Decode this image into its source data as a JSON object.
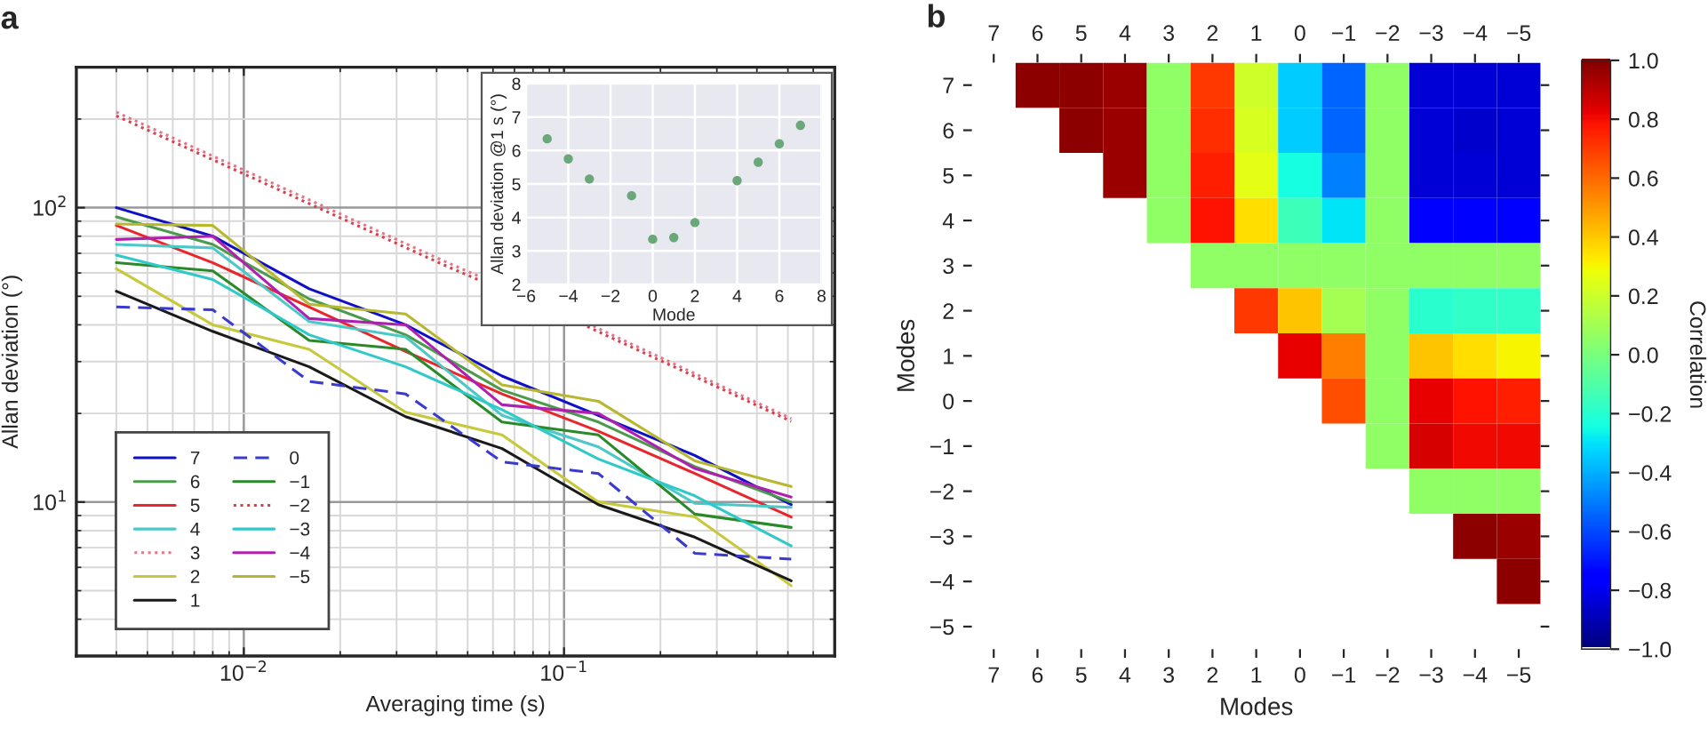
{
  "chart_data": [
    {
      "type": "line",
      "title": "a",
      "xlabel": "Averaging time (s)",
      "ylabel": "Allan deviation (°)",
      "log": "xy",
      "grid": true,
      "legend": "bottom left",
      "xlim": [
        0.003,
        0.7
      ],
      "ylim": [
        3,
        300
      ],
      "xticks": [
        {
          "value": 0.01,
          "label": "10$^{−2}$"
        },
        {
          "value": 0.1,
          "label": "10$^{−1}$"
        }
      ],
      "yticks": [
        {
          "value": 10,
          "label": "10$^{1}$"
        },
        {
          "value": 100,
          "label": "10$^{2}$"
        }
      ],
      "x": [
        0.004,
        0.008,
        0.016,
        0.032,
        0.064,
        0.128,
        0.256,
        0.512
      ],
      "series": [
        {
          "name": "7",
          "color": "#1010c8",
          "line_style": "solid",
          "values": [
            100,
            80,
            53,
            40,
            26.8,
            19.7,
            14.4,
            9.8
          ]
        },
        {
          "name": "6",
          "color": "#4c9a4c",
          "line_style": "solid",
          "values": [
            93,
            75,
            49,
            37,
            24,
            18.7,
            13.2,
            10
          ]
        },
        {
          "name": "5",
          "color": "#e8262b",
          "line_style": "solid",
          "values": [
            87,
            65,
            46,
            32.5,
            23.3,
            17.4,
            12.5,
            8.9
          ]
        },
        {
          "name": "4",
          "color": "#4cc8c8",
          "line_style": "solid",
          "values": [
            75,
            73,
            41,
            36.4,
            19.7,
            15.4,
            9.9,
            9.6
          ]
        },
        {
          "name": "3",
          "color": "#e8748a",
          "line_style": "dotted",
          "x": [
            0.004,
            0.042,
            0.121,
            0.512
          ],
          "values": [
            211,
            66,
            40,
            19.2
          ]
        },
        {
          "name": "2",
          "color": "#c8c83c",
          "line_style": "solid",
          "values": [
            62,
            40,
            33,
            20.2,
            16.9,
            10,
            8.9,
            5.2
          ]
        },
        {
          "name": "1",
          "color": "#1a1a1a",
          "line_style": "solid",
          "values": [
            52,
            38,
            28.8,
            19.5,
            15.2,
            9.8,
            7.6,
            5.4
          ]
        },
        {
          "name": "0",
          "color": "#3a3ad0",
          "line_style": "dashed",
          "values": [
            46,
            45,
            25.7,
            23.3,
            13.7,
            12.5,
            6.7,
            6.4
          ]
        },
        {
          "name": "−1",
          "color": "#2a8a2a",
          "line_style": "solid",
          "values": [
            65,
            61,
            35.4,
            33,
            18.7,
            16.9,
            9.1,
            8.2
          ]
        },
        {
          "name": "−2",
          "color": "#d8404a",
          "line_style": "dotted",
          "x": [
            0.004,
            0.042,
            0.121,
            0.512
          ],
          "values": [
            205,
            64,
            39,
            18.8
          ]
        },
        {
          "name": "−3",
          "color": "#30c8c8",
          "line_style": "solid",
          "values": [
            69,
            57,
            37,
            28.8,
            20.6,
            14,
            10.5,
            7.1
          ]
        },
        {
          "name": "−4",
          "color": "#b020b0",
          "line_style": "solid",
          "values": [
            78,
            80,
            42,
            40,
            21.4,
            20,
            13,
            10.4
          ]
        },
        {
          "name": "−5",
          "color": "#b8b830",
          "line_style": "solid",
          "values": [
            88,
            87,
            47,
            43.5,
            25,
            22,
            13.8,
            11.3
          ]
        }
      ]
    },
    {
      "type": "scatter",
      "xlabel": "Mode",
      "ylabel": "Allan deviation @1 s (°)",
      "grid": true,
      "xlim": [
        -6,
        8
      ],
      "ylim": [
        2,
        8
      ],
      "xticks": [
        {
          "value": -6,
          "label": "−6"
        },
        {
          "value": -4,
          "label": "−4"
        },
        {
          "value": -2,
          "label": "−2"
        },
        0,
        2,
        4,
        6,
        8
      ],
      "yticks": [
        2,
        3,
        4,
        5,
        6,
        7,
        8
      ],
      "x": [
        -5,
        -4,
        -3,
        -1,
        0,
        1,
        2,
        4,
        5,
        6,
        7
      ],
      "series": [
        {
          "color": "#6aa87a",
          "values": [
            6.35,
            5.75,
            5.15,
            4.65,
            3.35,
            3.4,
            3.85,
            5.1,
            5.65,
            6.2,
            6.75
          ]
        }
      ]
    },
    {
      "type": "heatmap",
      "title": "b",
      "xlabel": "Modes",
      "ylabel": "Modes",
      "clabel": "Correlation",
      "categories": [
        "7",
        "6",
        "5",
        "4",
        "3",
        "2",
        "1",
        "0",
        "−1",
        "−2",
        "−3",
        "−4",
        "−5"
      ],
      "y_categories": [
        "7",
        "6",
        "5",
        "4",
        "3",
        "2",
        "1",
        "0",
        "−1",
        "−2",
        "−3",
        "−4",
        "−5"
      ],
      "clim": [
        -1,
        1
      ],
      "cticks": [
        {
          "value": -1,
          "label": "−1.0"
        },
        {
          "value": -0.8,
          "label": "−0.8"
        },
        {
          "value": -0.6,
          "label": "−0.6"
        },
        {
          "value": -0.4,
          "label": "−0.4"
        },
        {
          "value": -0.2,
          "label": "−0.2"
        },
        {
          "value": 0,
          "label": "0.0"
        },
        {
          "value": 0.2,
          "label": "0.2"
        },
        {
          "value": 0.4,
          "label": "0.4"
        },
        {
          "value": 0.6,
          "label": "0.6"
        },
        {
          "value": 0.8,
          "label": "0.8"
        },
        {
          "value": 1,
          "label": "1.0"
        }
      ],
      "cells": [
        [
          null,
          0.97,
          0.97,
          0.95,
          0.05,
          0.7,
          0.2,
          -0.35,
          -0.55,
          0.05,
          -0.85,
          -0.85,
          -0.85
        ],
        [
          null,
          null,
          0.97,
          0.95,
          0.05,
          0.72,
          0.22,
          -0.35,
          -0.55,
          0.05,
          -0.85,
          -0.86,
          -0.85
        ],
        [
          null,
          null,
          null,
          0.95,
          0.05,
          0.75,
          0.25,
          -0.25,
          -0.5,
          0.05,
          -0.85,
          -0.85,
          -0.85
        ],
        [
          null,
          null,
          null,
          null,
          0.05,
          0.78,
          0.35,
          -0.15,
          -0.3,
          0.05,
          -0.75,
          -0.78,
          -0.78
        ],
        [
          null,
          null,
          null,
          null,
          null,
          0.05,
          0.05,
          0.05,
          0.05,
          0.05,
          0.05,
          0.05,
          0.05
        ],
        [
          null,
          null,
          null,
          null,
          null,
          null,
          0.7,
          0.4,
          0.1,
          0.05,
          -0.2,
          -0.18,
          -0.18
        ],
        [
          null,
          null,
          null,
          null,
          null,
          null,
          null,
          0.82,
          0.55,
          0.05,
          0.4,
          0.35,
          0.3
        ],
        [
          null,
          null,
          null,
          null,
          null,
          null,
          null,
          null,
          0.65,
          0.05,
          0.82,
          0.78,
          0.75
        ],
        [
          null,
          null,
          null,
          null,
          null,
          null,
          null,
          null,
          null,
          0.05,
          0.85,
          0.8,
          0.8
        ],
        [
          null,
          null,
          null,
          null,
          null,
          null,
          null,
          null,
          null,
          null,
          0.05,
          0.05,
          0.05
        ],
        [
          null,
          null,
          null,
          null,
          null,
          null,
          null,
          null,
          null,
          null,
          null,
          0.97,
          0.95
        ],
        [
          null,
          null,
          null,
          null,
          null,
          null,
          null,
          null,
          null,
          null,
          null,
          null,
          0.97
        ],
        [
          null,
          null,
          null,
          null,
          null,
          null,
          null,
          null,
          null,
          null,
          null,
          null,
          null
        ]
      ]
    }
  ]
}
